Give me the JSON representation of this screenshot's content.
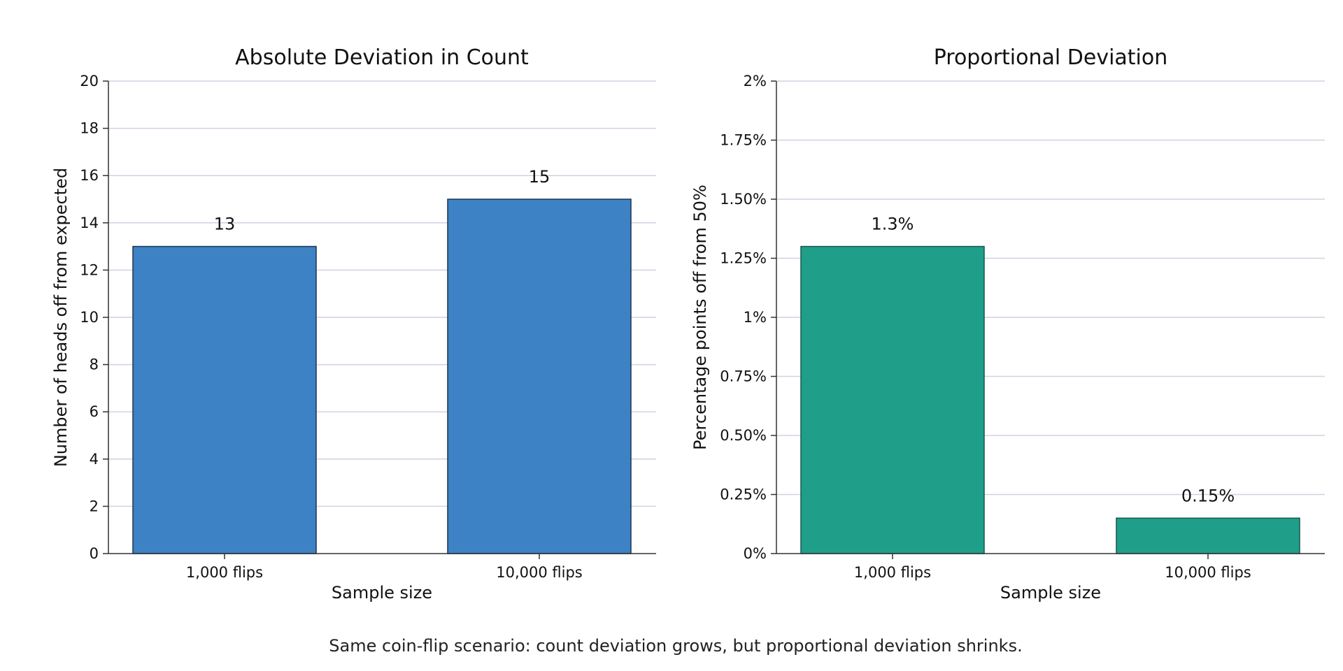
{
  "caption": "Same coin-flip scenario: count deviation grows, but proportional deviation shrinks.",
  "colors": {
    "left_bar": "#3d82c4",
    "left_bar_edge": "#1d3550",
    "right_bar": "#1f9f8a",
    "right_bar_edge": "#15584d"
  },
  "chart_data": [
    {
      "type": "bar",
      "title": "Absolute Deviation in Count",
      "xlabel": "Sample size",
      "ylabel": "Number of heads off from expected",
      "categories": [
        "1,000 flips",
        "10,000 flips"
      ],
      "values": [
        13,
        15
      ],
      "value_labels": [
        "13",
        "15"
      ],
      "ylim": [
        0,
        20
      ],
      "yticks": [
        0,
        2,
        4,
        6,
        8,
        10,
        12,
        14,
        16,
        18,
        20
      ],
      "ytick_labels": [
        "0",
        "2",
        "4",
        "6",
        "8",
        "10",
        "12",
        "14",
        "16",
        "18",
        "20"
      ],
      "grid": true
    },
    {
      "type": "bar",
      "title": "Proportional Deviation",
      "xlabel": "Sample size",
      "ylabel": "Percentage points off from 50%",
      "categories": [
        "1,000 flips",
        "10,000 flips"
      ],
      "values": [
        1.3,
        0.15
      ],
      "value_labels": [
        "1.3%",
        "0.15%"
      ],
      "ylim": [
        0,
        2
      ],
      "yticks": [
        0,
        0.25,
        0.5,
        0.75,
        1,
        1.25,
        1.5,
        1.75,
        2
      ],
      "ytick_labels": [
        "0%",
        "0.25%",
        "0.50%",
        "0.75%",
        "1%",
        "1.25%",
        "1.50%",
        "1.75%",
        "2%"
      ],
      "grid": true
    }
  ]
}
